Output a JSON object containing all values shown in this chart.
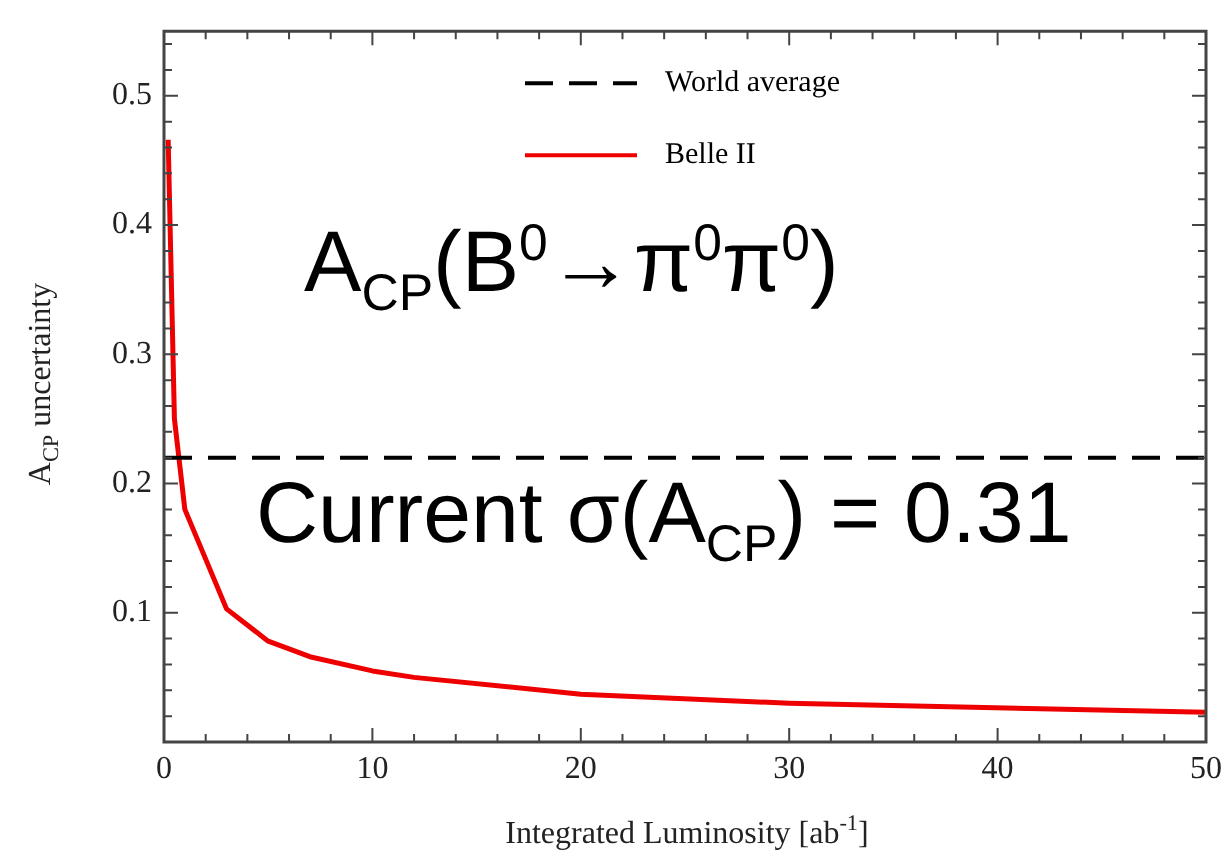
{
  "chart_data": {
    "type": "line",
    "xlabel": "Integrated Luminosity [ab$^{-1}$]",
    "ylabel": "A$_{CP}$ uncertainty",
    "x": [
      0.2,
      0.5,
      1,
      3,
      5,
      7,
      10,
      12,
      20,
      30,
      50
    ],
    "series": [
      {
        "name": "Belle II",
        "color": "#ee0000",
        "values": [
          0.466,
          0.25,
          0.18,
          0.103,
          0.078,
          0.066,
          0.055,
          0.05,
          0.037,
          0.03,
          0.023
        ]
      }
    ],
    "ref_lines": [
      {
        "axis": "y",
        "value": 0.22,
        "label": "World average",
        "color": "#000000",
        "line_style": "dashed"
      }
    ],
    "xlim": [
      0,
      50
    ],
    "xticks": [
      0,
      10,
      20,
      30,
      40,
      50
    ],
    "ylim": [
      0,
      0.55
    ],
    "yticks": [
      0.1,
      0.2,
      0.3,
      0.4,
      0.5
    ],
    "annotations": [
      "A$_{CP}$(B$^{0}$→π$^{0}$π$^{0}$)",
      "Current σ(A$_{CP}$) = 0.31"
    ],
    "legend": "top",
    "grid": false,
    "marker": "none",
    "line_style": "solid"
  }
}
